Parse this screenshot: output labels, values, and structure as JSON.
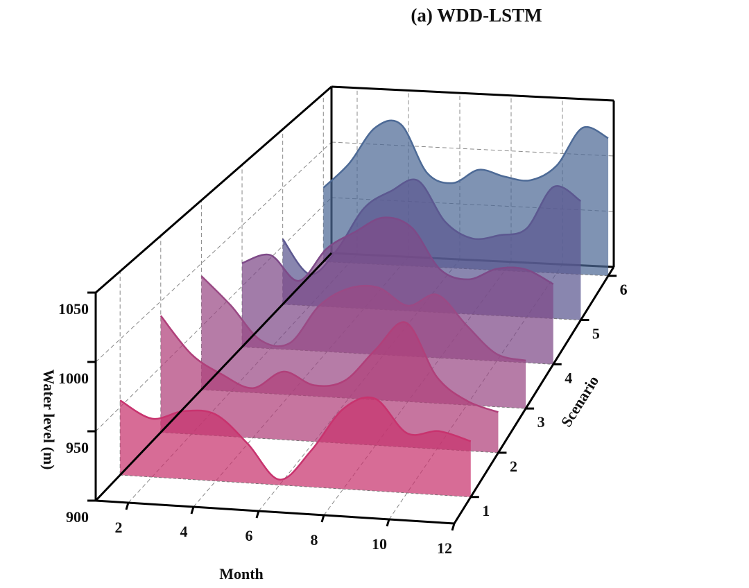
{
  "chart_data": {
    "type": "ridgeline3d",
    "title": "(a) WDD-LSTM",
    "x_label": "Month",
    "y_label": "Scenario",
    "z_label": "Water level (m)",
    "x": [
      1,
      2,
      3,
      4,
      5,
      6,
      7,
      8,
      9,
      10,
      11,
      12
    ],
    "xlim": [
      1,
      12
    ],
    "xticks": [
      2,
      4,
      6,
      8,
      10,
      12
    ],
    "ylim": [
      0.4,
      6.2
    ],
    "yticks": [
      1,
      2,
      3,
      4,
      5,
      6
    ],
    "zlim": [
      900,
      1050
    ],
    "zticks": [
      900,
      950,
      1000,
      1050
    ],
    "grid": true,
    "series": [
      {
        "scenario": 1,
        "color": "#c8336e",
        "values": [
          955,
          943,
          950,
          949,
          929,
          904,
          927,
          959,
          968,
          944,
          947,
          941
        ]
      },
      {
        "scenario": 2,
        "color": "#b0407a",
        "values": [
          989,
          961,
          947,
          938,
          952,
          943,
          948,
          973,
          995,
          955,
          938,
          931
        ]
      },
      {
        "scenario": 3,
        "color": "#9a4a85",
        "values": [
          990,
          968,
          942,
          941,
          972,
          987,
          989,
          976,
          986,
          963,
          942,
          938
        ]
      },
      {
        "scenario": 4,
        "color": "#7e4a88",
        "values": [
          969,
          977,
          957,
          985,
          1000,
          1013,
          1006,
          973,
          966,
          976,
          977,
          966
        ]
      },
      {
        "scenario": 5,
        "color": "#5c5890",
        "values": [
          956,
          927,
          949,
          986,
          1002,
          1012,
          978,
          965,
          969,
          976,
          1013,
          1002
        ]
      },
      {
        "scenario": 6,
        "color": "#4d6a96",
        "values": [
          966,
          989,
          1022,
          1026,
          984,
          976,
          989,
          984,
          982,
          996,
          1031,
          1023
        ]
      }
    ]
  }
}
